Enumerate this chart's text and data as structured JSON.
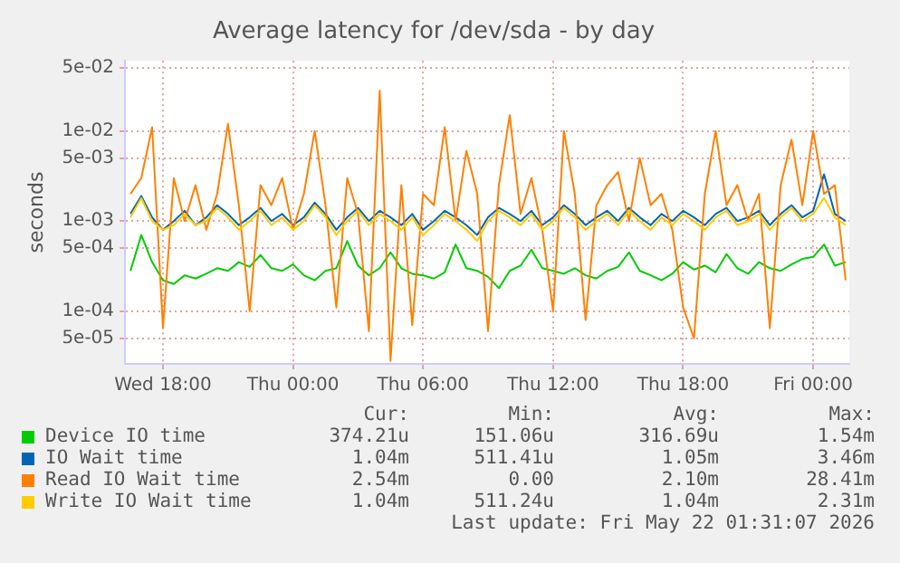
{
  "chart_data": {
    "type": "line",
    "title": "Average latency for /dev/sda - by day",
    "ylabel": "seconds",
    "log": "y",
    "grid": true,
    "legend": "bottom",
    "marker": "none",
    "line_style": "solid",
    "x": [
      "2026-05-20T16:30",
      "2026-05-20T17:00",
      "2026-05-20T17:30",
      "2026-05-20T18:00",
      "2026-05-20T18:30",
      "2026-05-20T19:00",
      "2026-05-20T19:30",
      "2026-05-20T20:00",
      "2026-05-20T20:30",
      "2026-05-20T21:00",
      "2026-05-20T21:30",
      "2026-05-20T22:00",
      "2026-05-20T22:30",
      "2026-05-20T23:00",
      "2026-05-20T23:30",
      "2026-05-21T00:00",
      "2026-05-21T00:30",
      "2026-05-21T01:00",
      "2026-05-21T01:30",
      "2026-05-21T02:00",
      "2026-05-21T02:30",
      "2026-05-21T03:00",
      "2026-05-21T03:30",
      "2026-05-21T04:00",
      "2026-05-21T04:30",
      "2026-05-21T05:00",
      "2026-05-21T05:30",
      "2026-05-21T06:00",
      "2026-05-21T06:30",
      "2026-05-21T07:00",
      "2026-05-21T07:30",
      "2026-05-21T08:00",
      "2026-05-21T08:30",
      "2026-05-21T09:00",
      "2026-05-21T09:30",
      "2026-05-21T10:00",
      "2026-05-21T10:30",
      "2026-05-21T11:00",
      "2026-05-21T11:30",
      "2026-05-21T12:00",
      "2026-05-21T12:30",
      "2026-05-21T13:00",
      "2026-05-21T13:30",
      "2026-05-21T14:00",
      "2026-05-21T14:30",
      "2026-05-21T15:00",
      "2026-05-21T15:30",
      "2026-05-21T16:00",
      "2026-05-21T16:30",
      "2026-05-21T17:00",
      "2026-05-21T17:30",
      "2026-05-21T18:00",
      "2026-05-21T18:30",
      "2026-05-21T19:00",
      "2026-05-21T19:30",
      "2026-05-21T20:00",
      "2026-05-21T20:30",
      "2026-05-21T21:00",
      "2026-05-21T21:30",
      "2026-05-21T22:00",
      "2026-05-21T22:30",
      "2026-05-21T23:00",
      "2026-05-21T23:30",
      "2026-05-22T00:00",
      "2026-05-22T00:30",
      "2026-05-22T01:00",
      "2026-05-22T01:30"
    ],
    "xlim": [
      "2026-05-20T16:15",
      "2026-05-22T01:40"
    ],
    "xticks": [
      {
        "value": "2026-05-20T18:00",
        "label": "Wed 18:00"
      },
      {
        "value": "2026-05-21T00:00",
        "label": "Thu 00:00"
      },
      {
        "value": "2026-05-21T06:00",
        "label": "Thu 06:00"
      },
      {
        "value": "2026-05-21T12:00",
        "label": "Thu 12:00"
      },
      {
        "value": "2026-05-21T18:00",
        "label": "Thu 18:00"
      },
      {
        "value": "2026-05-22T00:00",
        "label": "Fri 00:00"
      }
    ],
    "ylim": [
      2.6e-05,
      0.06
    ],
    "yticks": [
      {
        "value": 0.05,
        "label": "5e-02"
      },
      {
        "value": 0.01,
        "label": "1e-02"
      },
      {
        "value": 0.005,
        "label": "5e-03"
      },
      {
        "value": 0.001,
        "label": "1e-03"
      },
      {
        "value": 0.0005,
        "label": "5e-04"
      },
      {
        "value": 0.0001,
        "label": "1e-04"
      },
      {
        "value": 5e-05,
        "label": "5e-05"
      }
    ],
    "series": [
      {
        "name": "Device IO time",
        "color": "#00cc00",
        "values": [
          0.00028,
          0.0007,
          0.00035,
          0.00022,
          0.0002,
          0.00025,
          0.00023,
          0.00026,
          0.0003,
          0.00028,
          0.00035,
          0.00031,
          0.00042,
          0.0003,
          0.00028,
          0.00033,
          0.00025,
          0.00022,
          0.00028,
          0.0003,
          0.0006,
          0.00032,
          0.00025,
          0.0003,
          0.00045,
          0.0003,
          0.00026,
          0.00025,
          0.00023,
          0.00027,
          0.00055,
          0.0003,
          0.00028,
          0.00024,
          0.00018,
          0.00028,
          0.00032,
          0.00048,
          0.0003,
          0.00028,
          0.00026,
          0.0003,
          0.00025,
          0.00023,
          0.00028,
          0.00031,
          0.00045,
          0.00028,
          0.00025,
          0.00022,
          0.00026,
          0.00035,
          0.00029,
          0.00032,
          0.00027,
          0.00043,
          0.0003,
          0.00026,
          0.00035,
          0.0003,
          0.00028,
          0.00033,
          0.00038,
          0.0004,
          0.00055,
          0.00032,
          0.00035
        ]
      },
      {
        "name": "IO Wait time",
        "color": "#0066b3",
        "values": [
          0.0012,
          0.0019,
          0.0011,
          0.0008,
          0.001,
          0.0013,
          0.0009,
          0.0011,
          0.0015,
          0.0012,
          0.0009,
          0.0011,
          0.0014,
          0.001,
          0.0012,
          0.0009,
          0.0011,
          0.0016,
          0.0012,
          0.0008,
          0.0011,
          0.0014,
          0.001,
          0.0013,
          0.0011,
          0.0009,
          0.0012,
          0.0008,
          0.001,
          0.0013,
          0.0011,
          0.0009,
          0.0007,
          0.0011,
          0.0014,
          0.0012,
          0.001,
          0.0013,
          0.0009,
          0.0011,
          0.0015,
          0.0012,
          0.0009,
          0.0011,
          0.0013,
          0.001,
          0.0014,
          0.0011,
          0.0009,
          0.0012,
          0.001,
          0.0013,
          0.0011,
          0.0009,
          0.0012,
          0.0014,
          0.001,
          0.0011,
          0.0013,
          0.0009,
          0.0012,
          0.0015,
          0.0011,
          0.0013,
          0.0033,
          0.0012,
          0.001
        ]
      },
      {
        "name": "Read IO Wait time",
        "color": "#ff8000",
        "values": [
          0.002,
          0.003,
          0.011,
          6.5e-05,
          0.003,
          0.001,
          0.0025,
          0.0008,
          0.002,
          0.012,
          0.0015,
          0.0001,
          0.0025,
          0.0015,
          0.003,
          0.0008,
          0.002,
          0.01,
          0.0015,
          0.00011,
          0.003,
          0.0012,
          6e-05,
          0.028,
          2.8e-05,
          0.0025,
          7e-05,
          0.002,
          0.0015,
          0.011,
          0.001,
          0.006,
          0.002,
          6e-05,
          0.0025,
          0.015,
          0.0012,
          0.003,
          0.0008,
          0.0001,
          0.01,
          0.002,
          8e-05,
          0.0015,
          0.0025,
          0.0035,
          0.001,
          0.005,
          0.0015,
          0.002,
          0.0008,
          0.00011,
          5e-05,
          0.002,
          0.01,
          0.0015,
          0.0025,
          0.001,
          0.002,
          6.5e-05,
          0.0025,
          0.008,
          0.0015,
          0.01,
          0.002,
          0.0025,
          0.00022
        ]
      },
      {
        "name": "Write IO Wait time",
        "color": "#ffcc00",
        "values": [
          0.0011,
          0.0018,
          0.001,
          0.0008,
          0.0009,
          0.0012,
          0.0009,
          0.001,
          0.0014,
          0.0011,
          0.0008,
          0.001,
          0.0013,
          0.0009,
          0.0011,
          0.0008,
          0.001,
          0.0015,
          0.0011,
          0.0007,
          0.001,
          0.0013,
          0.0009,
          0.0012,
          0.001,
          0.0008,
          0.0011,
          0.0007,
          0.0009,
          0.0012,
          0.001,
          0.0008,
          0.0006,
          0.001,
          0.0013,
          0.0011,
          0.0009,
          0.0012,
          0.0008,
          0.001,
          0.0014,
          0.0011,
          0.0008,
          0.001,
          0.0012,
          0.0009,
          0.0013,
          0.001,
          0.0008,
          0.0011,
          0.0009,
          0.0012,
          0.001,
          0.0008,
          0.0011,
          0.0013,
          0.0009,
          0.001,
          0.0012,
          0.0008,
          0.0011,
          0.0014,
          0.001,
          0.0012,
          0.0018,
          0.0011,
          0.0009
        ]
      }
    ],
    "annotations": [
      "Cur:",
      "Min:",
      "Avg:",
      "Max:",
      "374.21u",
      "151.06u",
      "316.69u",
      "1.54m",
      "1.04m",
      "511.41u",
      "1.05m",
      "3.46m",
      "2.54m",
      "0.00",
      "2.10m",
      "28.41m",
      "1.04m",
      "511.24u",
      "1.04m",
      "2.31m",
      "Last update: Fri May 22 01:31:07 2026"
    ]
  }
}
